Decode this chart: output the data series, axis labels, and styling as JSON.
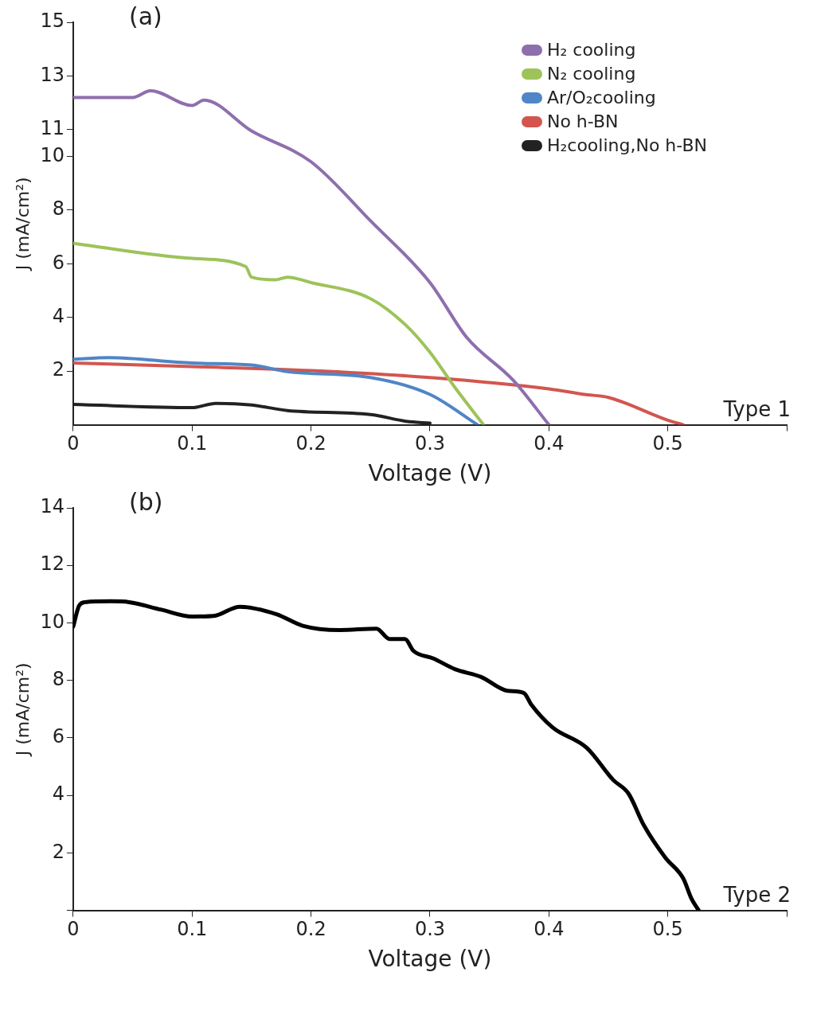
{
  "chart_data": [
    {
      "type": "line",
      "xlabel": "Voltage (V)",
      "ylabel": "J (mA/cm²)",
      "annotations": [
        "(a)",
        "Type 1"
      ],
      "legend": "top right",
      "xlim": [
        0,
        0.6
      ],
      "xticks": [
        0,
        0.1,
        0.2,
        0.3,
        0.4,
        0.5,
        {
          "value": 0.6,
          "label": null
        }
      ],
      "ylim": [
        0,
        15
      ],
      "yticks": [
        2,
        4,
        6,
        8,
        10,
        11,
        13,
        15
      ],
      "grid": false,
      "marker": "none",
      "line_style": "solid",
      "series": [
        {
          "name": "H₂ cooling",
          "color": "#8e6fae",
          "x": [
            0,
            0.05,
            0.065,
            0.1,
            0.11,
            0.15,
            0.2,
            0.25,
            0.3,
            0.331,
            0.37,
            0.4
          ],
          "values": [
            12.2,
            12.2,
            12.45,
            11.9,
            12.1,
            10.95,
            9.8,
            7.6,
            5.3,
            3.25,
            1.66,
            0
          ]
        },
        {
          "name": "N₂ cooling",
          "color": "#9dc35a",
          "x": [
            0,
            0.1,
            0.145,
            0.15,
            0.17,
            0.18,
            0.2,
            0.25,
            0.28,
            0.3,
            0.32,
            0.345
          ],
          "values": [
            6.76,
            6.2,
            5.9,
            5.5,
            5.4,
            5.5,
            5.3,
            4.7,
            3.7,
            2.7,
            1.45,
            0
          ]
        },
        {
          "name": "Ar/O₂cooling",
          "color": "#4f86c6",
          "x": [
            0,
            0.03,
            0.1,
            0.15,
            0.18,
            0.25,
            0.3,
            0.34
          ],
          "values": [
            2.44,
            2.5,
            2.3,
            2.23,
            1.98,
            1.76,
            1.13,
            0
          ]
        },
        {
          "name": "No h-BN",
          "color": "#d2564f",
          "x": [
            0,
            0.1,
            0.2,
            0.3,
            0.4,
            0.43,
            0.45,
            0.5,
            0.513
          ],
          "values": [
            2.3,
            2.17,
            2.02,
            1.76,
            1.34,
            1.13,
            1.02,
            0.17,
            0
          ]
        },
        {
          "name": "H₂cooling,No h-BN",
          "color": "#222222",
          "x": [
            0,
            0.1,
            0.12,
            0.15,
            0.18,
            0.25,
            0.28,
            0.3
          ],
          "values": [
            0.76,
            0.64,
            0.8,
            0.74,
            0.53,
            0.38,
            0.13,
            0.06
          ]
        }
      ]
    },
    {
      "type": "line",
      "xlabel": "Voltage (V)",
      "ylabel": "J (mA/cm²)",
      "annotations": [
        "(b)",
        "Type 2"
      ],
      "legend": false,
      "xlim": [
        0,
        0.6
      ],
      "xticks": [
        0,
        0.1,
        0.2,
        0.3,
        0.4,
        0.5,
        {
          "value": 0.6,
          "label": null
        }
      ],
      "ylim": [
        0,
        14
      ],
      "yticks": [
        {
          "value": 0,
          "label": null
        },
        2,
        4,
        6,
        8,
        10,
        12,
        14
      ],
      "grid": false,
      "marker": "none",
      "line_style": "solid",
      "series": [
        {
          "color": "#000000",
          "x": [
            0,
            0.005,
            0.01,
            0.032,
            0.047,
            0.074,
            0.1,
            0.118,
            0.14,
            0.171,
            0.193,
            0.224,
            0.255,
            0.266,
            0.279,
            0.286,
            0.303,
            0.321,
            0.343,
            0.365,
            0.379,
            0.385,
            0.403,
            0.432,
            0.454,
            0.467,
            0.48,
            0.498,
            0.513,
            0.52,
            0.526
          ],
          "values": [
            9.87,
            10.6,
            10.72,
            10.75,
            10.72,
            10.46,
            10.22,
            10.24,
            10.56,
            10.3,
            9.9,
            9.75,
            9.8,
            9.44,
            9.44,
            9.03,
            8.76,
            8.39,
            8.12,
            7.64,
            7.56,
            7.17,
            6.37,
            5.65,
            4.54,
            4.06,
            2.95,
            1.83,
            1.11,
            0.4,
            0
          ]
        }
      ]
    }
  ]
}
